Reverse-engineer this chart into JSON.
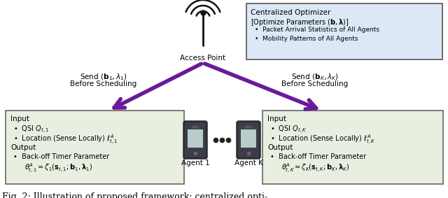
{
  "title": "Fig. 2: Illustration of proposed framework: centralized opti-",
  "bg_color": "#ffffff",
  "box_fill_left": "#e8efe0",
  "box_fill_right": "#e8efe0",
  "box_fill_top": "#dce8f5",
  "box_border": "#666666",
  "arrow_color": "#6a1a9a",
  "text_color": "#000000",
  "ap_label": "Access Point",
  "agent1_label": "Agent 1",
  "agentK_label": "Agent K",
  "top_box_title": "Centralized Optimizer",
  "top_box_line1": "[Optimize Parameters ($\\mathbf{b}, \\boldsymbol{\\lambda}$)]",
  "top_box_bullet1": "Packet Arrival Statistics of All Agents",
  "top_box_bullet2": "Mobility Patterns of All Agents"
}
